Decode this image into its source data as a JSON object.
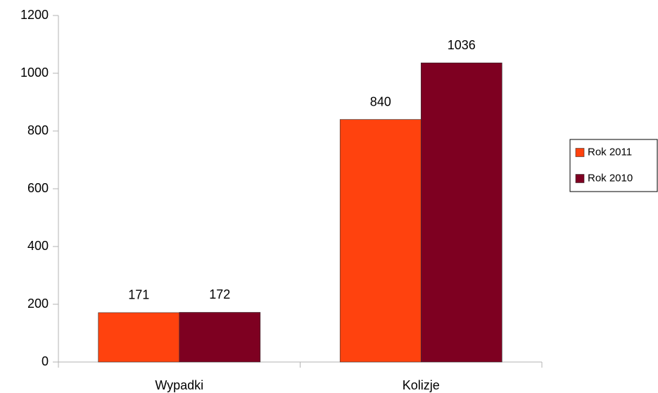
{
  "chart_data": {
    "type": "bar",
    "categories": [
      "Wypadki",
      "Kolizje"
    ],
    "series": [
      {
        "name": "Rok 2011",
        "color": "#ff420e",
        "values": [
          171,
          840
        ]
      },
      {
        "name": "Rok 2010",
        "color": "#7e0021",
        "values": [
          172,
          1036
        ]
      }
    ],
    "ylim": [
      0,
      1200
    ],
    "yticks": [
      0,
      200,
      400,
      600,
      800,
      1000,
      1200
    ],
    "grid": false,
    "legend": "right"
  }
}
